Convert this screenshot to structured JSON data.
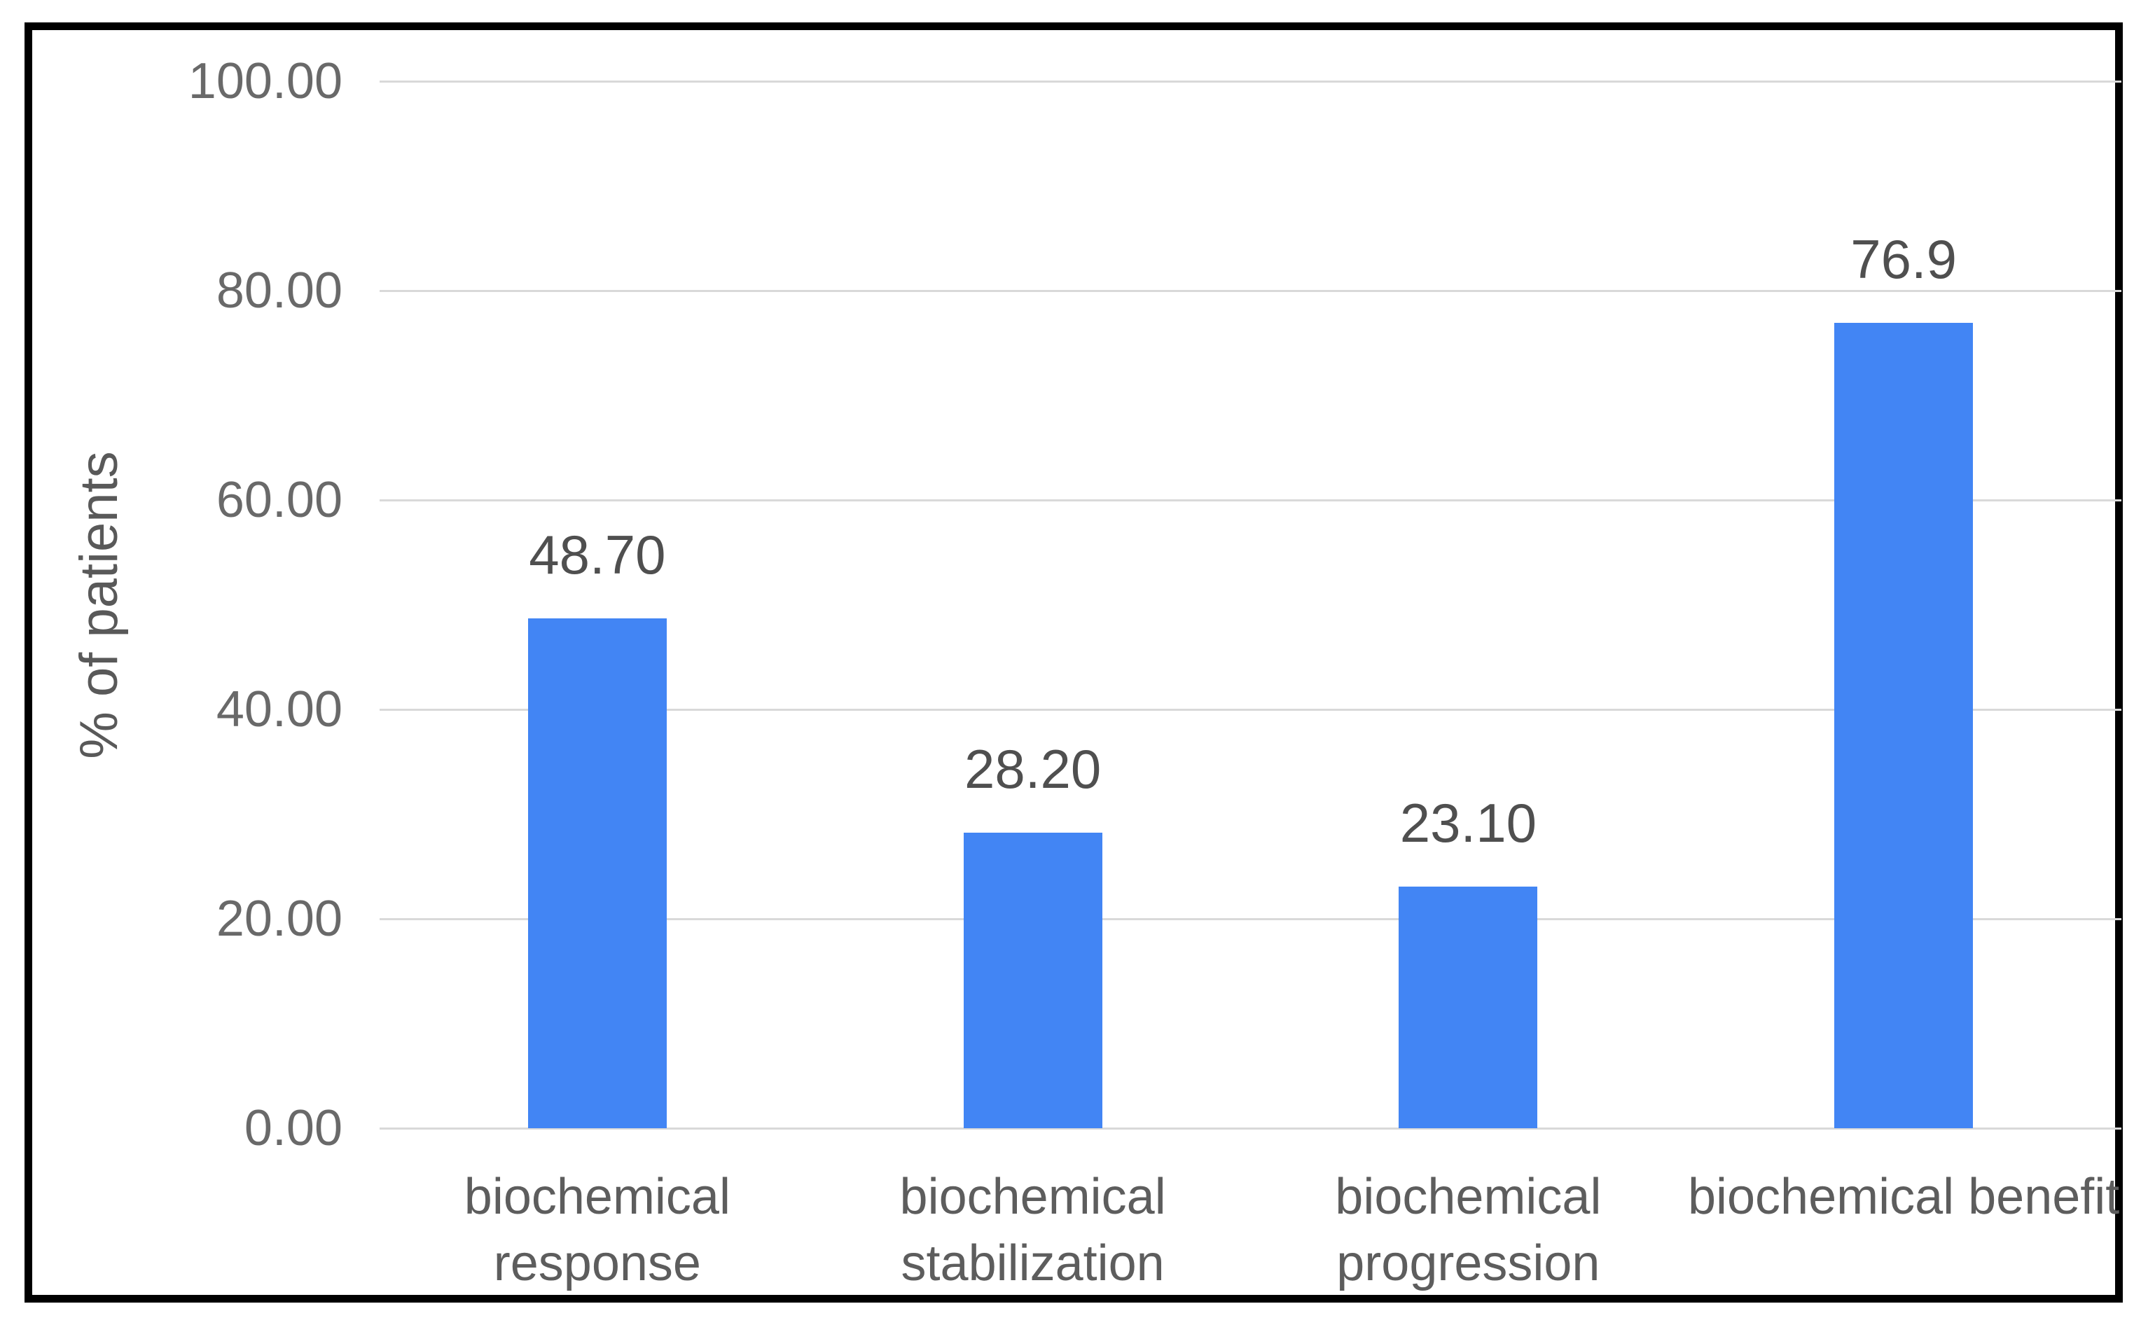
{
  "chart_data": {
    "type": "bar",
    "title": "",
    "xlabel": "",
    "ylabel": "% of patients",
    "categories": [
      "biochemical response",
      "biochemical stabilization",
      "biochemical progression",
      "biochemical benefit"
    ],
    "values": [
      48.7,
      28.2,
      23.1,
      76.9
    ],
    "data_labels": [
      "48.70",
      "28.20",
      "23.10",
      "76.9"
    ],
    "ylim": [
      0,
      100
    ],
    "ytick_step": 20,
    "ytick_labels": [
      "100.00",
      "80.00",
      "60.00",
      "40.00",
      "20.00",
      "0.00"
    ],
    "grid": true,
    "legend": "none",
    "colors": {
      "bar": "#4285f4",
      "gridline": "#d9d9d9",
      "tick_text": "#696969",
      "data_label_text": "#4f4f4f",
      "category_text": "#5d5d5d",
      "axis_title_text": "#595959",
      "frame": "#000000",
      "background": "#ffffff"
    }
  }
}
